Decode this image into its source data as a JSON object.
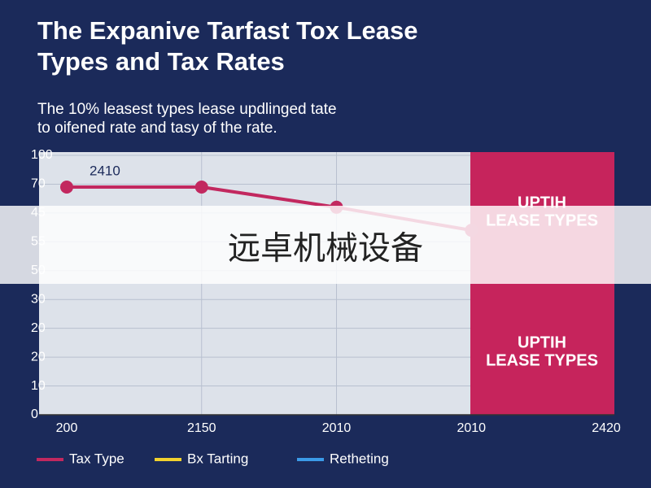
{
  "chart_data": {
    "type": "line",
    "title": [
      "The Expanive Tarfast Tox Lease",
      "Types and Tax Rates"
    ],
    "subtitle": [
      "The 10% leasest types lease updlinged tate",
      "to oifened rate and tasy of the rate."
    ],
    "categories": [
      "200",
      "2150",
      "2010",
      "2010",
      "2420"
    ],
    "series": [
      {
        "name": "Tax Type",
        "color": "#c2285f",
        "values": [
          7.9,
          7.9,
          7.2,
          6.4,
          null
        ]
      },
      {
        "name": "Bx Tarting",
        "color": "#f2d12e",
        "values": [
          null,
          null,
          null,
          null,
          null
        ]
      },
      {
        "name": "Retheting",
        "color": "#3b9be8",
        "values": [
          null,
          null,
          null,
          null,
          null
        ]
      }
    ],
    "ylim": [
      0,
      9
    ],
    "yticks": [
      {
        "value": 0,
        "label": "0"
      },
      {
        "value": 1,
        "label": "10"
      },
      {
        "value": 2,
        "label": "20"
      },
      {
        "value": 3,
        "label": "20"
      },
      {
        "value": 4,
        "label": "30"
      },
      {
        "value": 5,
        "label": "50"
      },
      {
        "value": 6,
        "label": "55"
      },
      {
        "value": 7,
        "label": "45"
      },
      {
        "value": 8,
        "label": "70"
      },
      {
        "value": 9,
        "label": "100"
      }
    ],
    "grid": true,
    "annotation": "2410",
    "band_labels": [
      [
        "UPTIH",
        "LEASE TYPES"
      ],
      [
        "UPTIH",
        "LEASE TYPES"
      ]
    ],
    "band_color": "#c6245c",
    "watermark": "远卓机械设备"
  }
}
